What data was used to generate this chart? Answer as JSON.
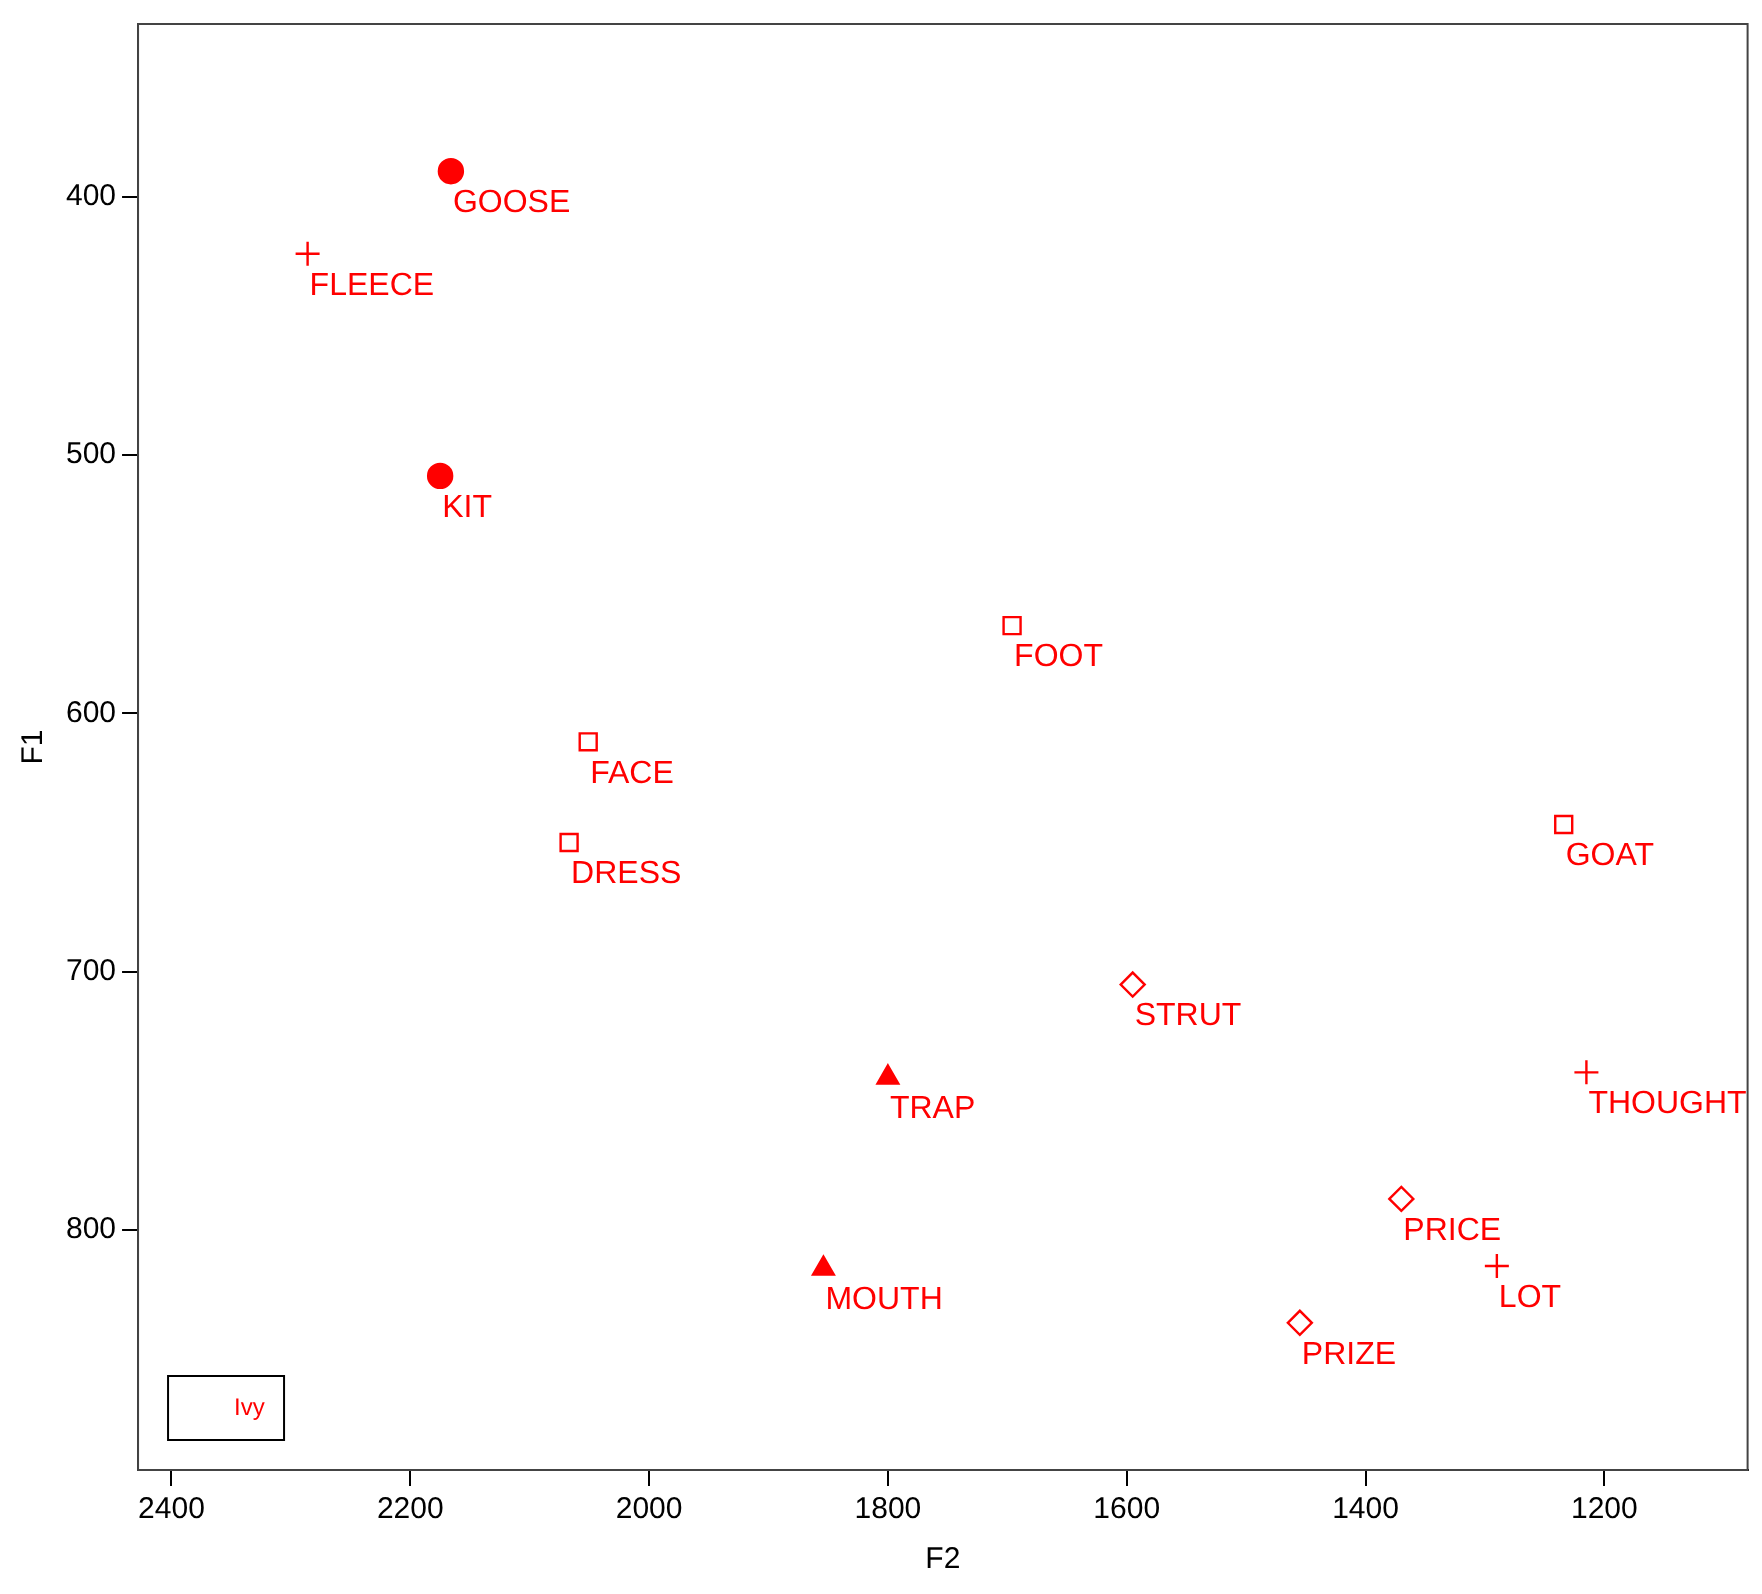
{
  "chart_data": {
    "type": "scatter",
    "xlabel": "F2",
    "ylabel": "F1",
    "legend_title": "Ivy",
    "grid": false,
    "xlim": [
      2428,
      1080
    ],
    "ylim": [
      893,
      333
    ],
    "xticks": [
      2400,
      2200,
      2000,
      1800,
      1600,
      1400,
      1200
    ],
    "yticks": [
      400,
      500,
      600,
      700,
      800
    ],
    "series": [
      {
        "name": "GOOSE",
        "color": "#ff0000",
        "marker": "circle",
        "x": [
          2166
        ],
        "values": [
          390
        ]
      },
      {
        "name": "FLEECE",
        "color": "#ff0000",
        "marker": "cross",
        "x": [
          2286
        ],
        "values": [
          422
        ]
      },
      {
        "name": "KIT",
        "color": "#ff0000",
        "marker": "circle",
        "x": [
          2175
        ],
        "values": [
          508
        ]
      },
      {
        "name": "FOOT",
        "color": "#ff0000",
        "marker": "square",
        "x": [
          1696
        ],
        "values": [
          566
        ]
      },
      {
        "name": "FACE",
        "color": "#ff0000",
        "marker": "square",
        "x": [
          2051
        ],
        "values": [
          611
        ]
      },
      {
        "name": "DRESS",
        "color": "#ff0000",
        "marker": "square",
        "x": [
          2067
        ],
        "values": [
          650
        ]
      },
      {
        "name": "GOAT",
        "color": "#ff0000",
        "marker": "square",
        "x": [
          1234
        ],
        "values": [
          643
        ]
      },
      {
        "name": "STRUT",
        "color": "#ff0000",
        "marker": "diamond",
        "x": [
          1595
        ],
        "values": [
          705
        ]
      },
      {
        "name": "TRAP",
        "color": "#ff0000",
        "marker": "triangle",
        "x": [
          1800
        ],
        "values": [
          741
        ]
      },
      {
        "name": "THOUGHT",
        "color": "#ff0000",
        "marker": "cross",
        "x": [
          1215
        ],
        "values": [
          739
        ]
      },
      {
        "name": "PRICE",
        "color": "#ff0000",
        "marker": "diamond",
        "x": [
          1370
        ],
        "values": [
          788
        ]
      },
      {
        "name": "LOT",
        "color": "#ff0000",
        "marker": "cross",
        "x": [
          1290
        ],
        "values": [
          814
        ]
      },
      {
        "name": "MOUTH",
        "color": "#ff0000",
        "marker": "triangle",
        "x": [
          1854
        ],
        "values": [
          815
        ]
      },
      {
        "name": "PRIZE",
        "color": "#ff0000",
        "marker": "diamond",
        "x": [
          1455
        ],
        "values": [
          836
        ]
      }
    ]
  }
}
